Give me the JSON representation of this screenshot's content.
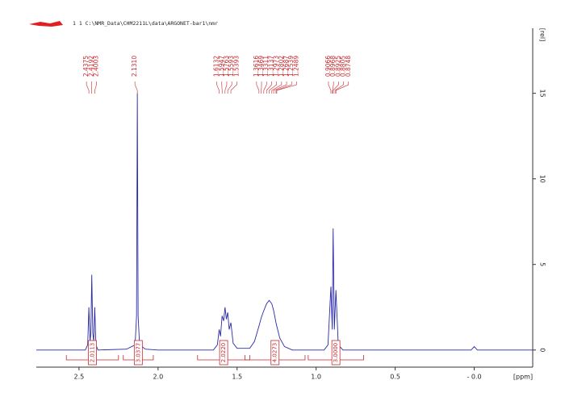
{
  "chart_data": {
    "type": "line",
    "title": "1  1  C:\\NMR_Data\\CHM2211L\\data\\ARGONET-bar1\\nmr",
    "x_label": "[ppm]",
    "y_label": "[rel]",
    "xlim": [
      2.77,
      -0.37
    ],
    "ylim": [
      -1,
      18.8
    ],
    "xticks": [
      2.5,
      {
        "value": 2,
        "label": "2.0"
      },
      1.5,
      {
        "value": 1,
        "label": "1.0"
      },
      0.5,
      {
        "value": 0,
        "label": "- 0.0"
      }
    ],
    "yticks": [
      0,
      5,
      10,
      15
    ],
    "x": [
      2.77,
      2.46,
      2.445,
      2.4375,
      2.43,
      2.425,
      2.4192,
      2.413,
      2.407,
      2.4003,
      2.393,
      2.38,
      2.2,
      2.145,
      2.136,
      2.131,
      2.126,
      2.117,
      2.08,
      2.0,
      1.65,
      1.625,
      1.6132,
      1.605,
      1.5947,
      1.585,
      1.5763,
      1.568,
      1.5593,
      1.55,
      1.5393,
      1.525,
      1.5,
      1.42,
      1.39,
      1.3616,
      1.3469,
      1.3311,
      1.3137,
      1.2973,
      1.2802,
      1.2687,
      1.2539,
      1.2489,
      1.23,
      1.2,
      1.15,
      0.95,
      0.925,
      0.9066,
      0.898,
      0.8925,
      0.885,
      0.8748,
      0.86,
      0.83,
      0.02,
      0.0,
      -0.02,
      -0.37
    ],
    "series": [
      {
        "color": "#2a2aa8",
        "values": [
          0,
          0,
          0.3,
          2.5,
          0.5,
          1.0,
          4.4,
          1.0,
          0.5,
          2.5,
          0.3,
          0,
          0.05,
          0.3,
          2.0,
          15,
          2.0,
          0.3,
          0.05,
          0,
          0,
          0.3,
          1.2,
          0.8,
          2.0,
          1.7,
          2.5,
          1.8,
          2.2,
          1.2,
          1.6,
          0.4,
          0.1,
          0.1,
          0.5,
          1.4,
          1.9,
          2.3,
          2.7,
          2.9,
          2.7,
          2.3,
          1.6,
          1.4,
          0.7,
          0.2,
          0,
          0,
          0.3,
          3.7,
          1.2,
          7.1,
          1.2,
          3.5,
          0.3,
          0,
          0,
          0.2,
          0,
          0
        ]
      }
    ],
    "peaks": [
      {
        "value": 2.4375,
        "label": "2.4375"
      },
      {
        "value": 2.4192,
        "label": "2.4192"
      },
      {
        "value": 2.4003,
        "label": "2.4003"
      },
      {
        "value": 2.131,
        "label": "2.1310"
      },
      {
        "value": 1.6132,
        "label": "1.6132"
      },
      {
        "value": 1.5947,
        "label": "1.5947"
      },
      {
        "value": 1.5763,
        "label": "1.5763"
      },
      {
        "value": 1.5593,
        "label": "1.5593"
      },
      {
        "value": 1.5393,
        "label": "1.5393"
      },
      {
        "value": 1.3616,
        "label": "1.3616"
      },
      {
        "value": 1.3469,
        "label": "1.3469"
      },
      {
        "value": 1.3311,
        "label": "1.3311"
      },
      {
        "value": 1.3137,
        "label": "1.3137"
      },
      {
        "value": 1.2973,
        "label": "1.2973"
      },
      {
        "value": 1.2802,
        "label": "1.2802"
      },
      {
        "value": 1.2687,
        "label": "1.2687"
      },
      {
        "value": 1.2539,
        "label": "1.2539"
      },
      {
        "value": 1.2489,
        "label": "1.2489"
      },
      {
        "value": 0.9066,
        "label": "0.9066"
      },
      {
        "value": 0.8968,
        "label": "0.8968"
      },
      {
        "value": 0.8925,
        "label": "0.8925"
      },
      {
        "value": 0.8805,
        "label": "0.8805"
      },
      {
        "value": 0.8748,
        "label": "0.8748"
      }
    ],
    "integrals": [
      {
        "from": 2.58,
        "to": 2.25,
        "value": 2.0113
      },
      {
        "from": 2.22,
        "to": 2.03,
        "value": 3.0377
      },
      {
        "from": 1.75,
        "to": 1.42,
        "value": 2.022
      },
      {
        "from": 1.45,
        "to": 1.07,
        "value": 4.0273
      },
      {
        "from": 1.05,
        "to": 0.7,
        "value": 3.0
      }
    ],
    "integral_labels": [
      "2.0113",
      "3.0377",
      "2.0220",
      "4.0273",
      "3.0000"
    ]
  }
}
